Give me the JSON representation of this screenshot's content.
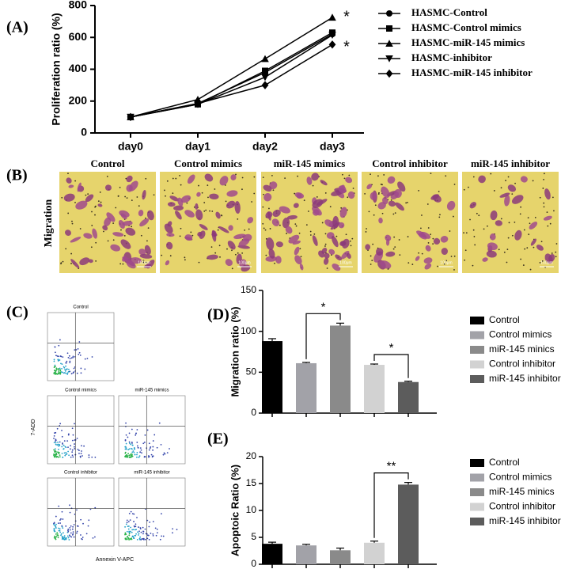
{
  "panel_labels": [
    "(A)",
    "(B)",
    "(C)",
    "(D)",
    "(E)"
  ],
  "migration": {
    "row_label": "Migration",
    "columns": [
      "Control",
      "Control mimics",
      "miR-145 mimics",
      "Control inhibitor",
      "miR-145 inhibitor"
    ],
    "scale_bar": "100μm"
  },
  "flow_cytometry": {
    "plots": [
      "Control",
      "Control mimics",
      "miR-145 mimics",
      "Control inhibitor",
      "miR-145 inhibitor"
    ],
    "x_label": "Annexin V-APC",
    "y_label": "7-ADD"
  },
  "chart_data": [
    {
      "type": "line",
      "y_label": "Proliferation ratio (%)",
      "categories": [
        "day0",
        "day1",
        "day2",
        "day3"
      ],
      "series": [
        {
          "name": "HASMC-Control",
          "color": "#000000",
          "marker": "circle",
          "values": [
            100,
            185,
            380,
            620
          ]
        },
        {
          "name": "HASMC-Control mimics",
          "color": "#000000",
          "marker": "square",
          "values": [
            100,
            180,
            390,
            630
          ]
        },
        {
          "name": "HASMC-miR-145 mimics",
          "color": "#000000",
          "marker": "triangle-up",
          "values": [
            100,
            210,
            465,
            725
          ]
        },
        {
          "name": "HASMC-inhibitor",
          "color": "#000000",
          "marker": "triangle-down",
          "values": [
            100,
            180,
            350,
            615
          ]
        },
        {
          "name": "HASMC-miR-145 inhibitor",
          "color": "#000000",
          "marker": "diamond",
          "values": [
            100,
            185,
            300,
            555
          ]
        }
      ],
      "annotations": [
        "*",
        "*"
      ],
      "ylim": [
        0,
        800
      ],
      "yticks": [
        0,
        200,
        400,
        600,
        800
      ]
    },
    {
      "type": "bar",
      "y_label": "Migration ratio (%)",
      "categories": [
        "Control",
        "Control mimics",
        "miR-145 minics",
        "Control inhibitor",
        "miR-145 inhibitor"
      ],
      "values": [
        88,
        61,
        107,
        59,
        38
      ],
      "errors": [
        3,
        1,
        3,
        1,
        1
      ],
      "colors": [
        "#000000",
        "#a2a2a8",
        "#8a8a8a",
        "#d2d2d2",
        "#5c5c5c"
      ],
      "annotations": [
        "*",
        "*"
      ],
      "ylim": [
        0,
        150
      ],
      "yticks": [
        0,
        50,
        100,
        150
      ]
    },
    {
      "type": "bar",
      "y_label": "Apoptoic Ratio (%)",
      "categories": [
        "Control",
        "Control mimics",
        "miR-145 minics",
        "Control inhibitor",
        "miR-145 inhibitor"
      ],
      "values": [
        3.8,
        3.5,
        2.6,
        4.0,
        14.8
      ],
      "errors": [
        0.3,
        0.2,
        0.4,
        0.3,
        0.4
      ],
      "colors": [
        "#000000",
        "#a2a2a8",
        "#8a8a8a",
        "#d2d2d2",
        "#5c5c5c"
      ],
      "annotations": [
        "**"
      ],
      "ylim": [
        0,
        20
      ],
      "yticks": [
        0,
        5,
        10,
        15,
        20
      ]
    }
  ]
}
